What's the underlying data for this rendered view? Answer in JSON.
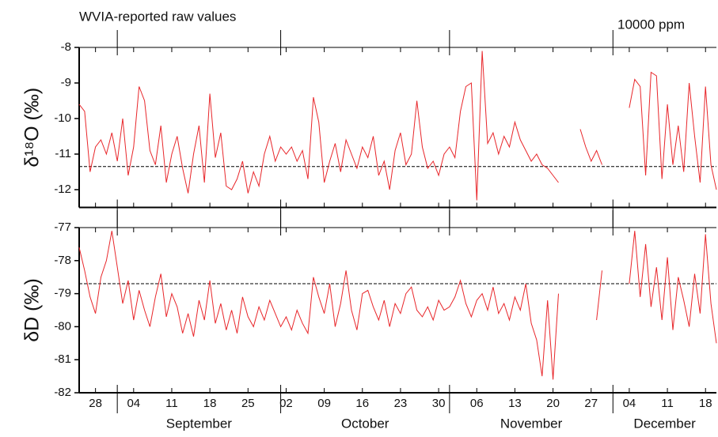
{
  "chart_data": [
    {
      "type": "line",
      "title": "WVIA-reported raw values",
      "annotation": "10000 ppm",
      "ylabel": "δ¹⁸O (‰)",
      "xlim": [
        "08-25",
        "12-20"
      ],
      "ylim": [
        -12.5,
        -8
      ],
      "yticks": [
        -8,
        -9,
        -10,
        -11,
        -12
      ],
      "month_ticks": [
        "09-01",
        "10-01",
        "11-01",
        "12-01"
      ],
      "reference_line": -11.35,
      "x": [
        "08-25",
        "08-26",
        "08-27",
        "08-28",
        "08-29",
        "08-30",
        "08-31",
        "09-01",
        "09-02",
        "09-03",
        "09-04",
        "09-05",
        "09-06",
        "09-07",
        "09-08",
        "09-09",
        "09-10",
        "09-11",
        "09-12",
        "09-13",
        "09-14",
        "09-15",
        "09-16",
        "09-17",
        "09-18",
        "09-19",
        "09-20",
        "09-21",
        "09-22",
        "09-23",
        "09-24",
        "09-25",
        "09-26",
        "09-27",
        "09-28",
        "09-29",
        "09-30",
        "10-01",
        "10-02",
        "10-03",
        "10-04",
        "10-05",
        "10-06",
        "10-07",
        "10-08",
        "10-09",
        "10-10",
        "10-11",
        "10-12",
        "10-13",
        "10-14",
        "10-15",
        "10-16",
        "10-17",
        "10-18",
        "10-19",
        "10-20",
        "10-21",
        "10-22",
        "10-23",
        "10-24",
        "10-25",
        "10-26",
        "10-27",
        "10-28",
        "10-29",
        "10-30",
        "10-31",
        "11-01",
        "11-02",
        "11-03",
        "11-04",
        "11-05",
        "11-06",
        "11-07",
        "11-08",
        "11-09",
        "11-10",
        "11-11",
        "11-12",
        "11-13",
        "11-14",
        "11-15",
        "11-16",
        "11-17",
        "11-18",
        "11-19",
        "11-20",
        "11-21",
        "11-22",
        "11-23",
        "11-24",
        "11-25",
        "11-26",
        "11-27",
        "11-28",
        "11-29",
        "11-30",
        "12-01",
        "12-02",
        "12-03",
        "12-04",
        "12-05",
        "12-06",
        "12-07",
        "12-08",
        "12-09",
        "12-10",
        "12-11",
        "12-12",
        "12-13",
        "12-14",
        "12-15",
        "12-16",
        "12-17",
        "12-18",
        "12-19",
        "12-20"
      ],
      "series": [
        {
          "name": "δ18O",
          "color": "#e8262a",
          "values": [
            -9.6,
            -9.8,
            -11.5,
            -10.8,
            -10.6,
            -11.0,
            -10.4,
            -11.2,
            -10.0,
            -11.6,
            -10.8,
            -9.1,
            -9.5,
            -10.9,
            -11.3,
            -10.2,
            -11.8,
            -11.0,
            -10.5,
            -11.4,
            -12.1,
            -11.0,
            -10.2,
            -11.8,
            -9.3,
            -11.1,
            -10.4,
            -11.9,
            -12.0,
            -11.7,
            -11.2,
            -12.1,
            -11.5,
            -11.9,
            -11.0,
            -10.5,
            -11.2,
            -10.8,
            -11.0,
            -10.8,
            -11.2,
            -10.9,
            -11.7,
            -9.4,
            -10.1,
            -11.8,
            -11.2,
            -10.7,
            -11.5,
            -10.6,
            -11.0,
            -11.4,
            -10.8,
            -11.1,
            -10.5,
            -11.6,
            -11.2,
            -12.0,
            -10.9,
            -10.4,
            -11.3,
            -11.0,
            -9.5,
            -10.8,
            -11.4,
            -11.2,
            -11.6,
            -11.0,
            -10.8,
            -11.1,
            -9.8,
            -9.1,
            -9.0,
            -12.3,
            -8.1,
            -10.7,
            -10.4,
            -11.0,
            -10.5,
            -10.8,
            -10.1,
            -10.6,
            -10.9,
            -11.2,
            -11.0,
            -11.3,
            -11.4,
            -11.6,
            -11.8,
            null,
            null,
            null,
            -10.3,
            -10.8,
            -11.2,
            -10.9,
            -11.3,
            null,
            null,
            null,
            null,
            -9.7,
            -8.9,
            -9.1,
            -11.6,
            -8.7,
            -8.8,
            -11.7,
            -9.6,
            -11.3,
            -10.2,
            -11.5,
            -9.0,
            -10.5,
            -11.8,
            -9.1,
            -11.3,
            -12.0
          ]
        }
      ]
    },
    {
      "type": "line",
      "ylabel": "δD (‰)",
      "xlim": [
        "08-25",
        "12-20"
      ],
      "ylim": [
        -82,
        -77
      ],
      "yticks": [
        -77,
        -78,
        -79,
        -80,
        -81,
        -82
      ],
      "month_ticks": [
        "09-01",
        "10-01",
        "11-01",
        "12-01"
      ],
      "reference_line": -78.7,
      "xticks": [
        {
          "value": "08-28",
          "label": "28"
        },
        {
          "value": "09-04",
          "label": "04"
        },
        {
          "value": "09-11",
          "label": "11"
        },
        {
          "value": "09-18",
          "label": "18"
        },
        {
          "value": "09-25",
          "label": "25"
        },
        {
          "value": "10-02",
          "label": "02"
        },
        {
          "value": "10-09",
          "label": "09"
        },
        {
          "value": "10-16",
          "label": "16"
        },
        {
          "value": "10-23",
          "label": "23"
        },
        {
          "value": "10-30",
          "label": "30"
        },
        {
          "value": "11-06",
          "label": "06"
        },
        {
          "value": "11-13",
          "label": "13"
        },
        {
          "value": "11-20",
          "label": "20"
        },
        {
          "value": "11-27",
          "label": "27"
        },
        {
          "value": "12-04",
          "label": "04"
        },
        {
          "value": "12-11",
          "label": "11"
        },
        {
          "value": "12-18",
          "label": "18"
        }
      ],
      "months": [
        {
          "value": "09",
          "label": "September"
        },
        {
          "value": "10",
          "label": "October"
        },
        {
          "value": "11",
          "label": "November"
        },
        {
          "value": "12",
          "label": "December"
        }
      ],
      "x": [
        "08-25",
        "08-26",
        "08-27",
        "08-28",
        "08-29",
        "08-30",
        "08-31",
        "09-01",
        "09-02",
        "09-03",
        "09-04",
        "09-05",
        "09-06",
        "09-07",
        "09-08",
        "09-09",
        "09-10",
        "09-11",
        "09-12",
        "09-13",
        "09-14",
        "09-15",
        "09-16",
        "09-17",
        "09-18",
        "09-19",
        "09-20",
        "09-21",
        "09-22",
        "09-23",
        "09-24",
        "09-25",
        "09-26",
        "09-27",
        "09-28",
        "09-29",
        "09-30",
        "10-01",
        "10-02",
        "10-03",
        "10-04",
        "10-05",
        "10-06",
        "10-07",
        "10-08",
        "10-09",
        "10-10",
        "10-11",
        "10-12",
        "10-13",
        "10-14",
        "10-15",
        "10-16",
        "10-17",
        "10-18",
        "10-19",
        "10-20",
        "10-21",
        "10-22",
        "10-23",
        "10-24",
        "10-25",
        "10-26",
        "10-27",
        "10-28",
        "10-29",
        "10-30",
        "10-31",
        "11-01",
        "11-02",
        "11-03",
        "11-04",
        "11-05",
        "11-06",
        "11-07",
        "11-08",
        "11-09",
        "11-10",
        "11-11",
        "11-12",
        "11-13",
        "11-14",
        "11-15",
        "11-16",
        "11-17",
        "11-18",
        "11-19",
        "11-20",
        "11-21",
        "11-22",
        "11-23",
        "11-24",
        "11-25",
        "11-26",
        "11-27",
        "11-28",
        "11-29",
        "11-30",
        "12-01",
        "12-02",
        "12-03",
        "12-04",
        "12-05",
        "12-06",
        "12-07",
        "12-08",
        "12-09",
        "12-10",
        "12-11",
        "12-12",
        "12-13",
        "12-14",
        "12-15",
        "12-16",
        "12-17",
        "12-18",
        "12-19",
        "12-20"
      ],
      "series": [
        {
          "name": "δD",
          "color": "#e8262a",
          "values": [
            -77.6,
            -78.3,
            -79.1,
            -79.6,
            -78.5,
            -78.0,
            -77.1,
            -78.2,
            -79.3,
            -78.6,
            -79.8,
            -78.9,
            -79.5,
            -80.0,
            -79.1,
            -78.4,
            -79.7,
            -79.0,
            -79.4,
            -80.2,
            -79.6,
            -80.3,
            -79.2,
            -79.8,
            -78.6,
            -79.9,
            -79.3,
            -80.1,
            -79.5,
            -80.2,
            -79.1,
            -79.7,
            -80.0,
            -79.4,
            -79.8,
            -79.2,
            -79.6,
            -80.0,
            -79.7,
            -80.1,
            -79.5,
            -79.9,
            -80.2,
            -78.5,
            -79.1,
            -79.6,
            -78.7,
            -80.0,
            -79.3,
            -78.3,
            -79.5,
            -80.1,
            -79.0,
            -78.9,
            -79.4,
            -79.8,
            -79.2,
            -80.0,
            -79.3,
            -79.6,
            -79.0,
            -78.8,
            -79.5,
            -79.7,
            -79.4,
            -79.8,
            -79.2,
            -79.5,
            -79.4,
            -79.1,
            -78.6,
            -79.3,
            -79.7,
            -79.2,
            -79.0,
            -79.5,
            -78.8,
            -79.6,
            -79.3,
            -79.8,
            -79.1,
            -79.5,
            -78.7,
            -79.9,
            -80.4,
            -81.5,
            -79.2,
            -81.6,
            -79.0,
            null,
            null,
            null,
            null,
            null,
            null,
            -79.8,
            -78.3,
            null,
            null,
            null,
            null,
            -78.7,
            -77.1,
            -79.1,
            -77.5,
            -79.4,
            -78.2,
            -79.8,
            -77.9,
            -80.1,
            -78.5,
            -79.2,
            -80.0,
            -78.4,
            -79.6,
            -77.2,
            -79.3,
            -80.5
          ]
        }
      ]
    }
  ]
}
